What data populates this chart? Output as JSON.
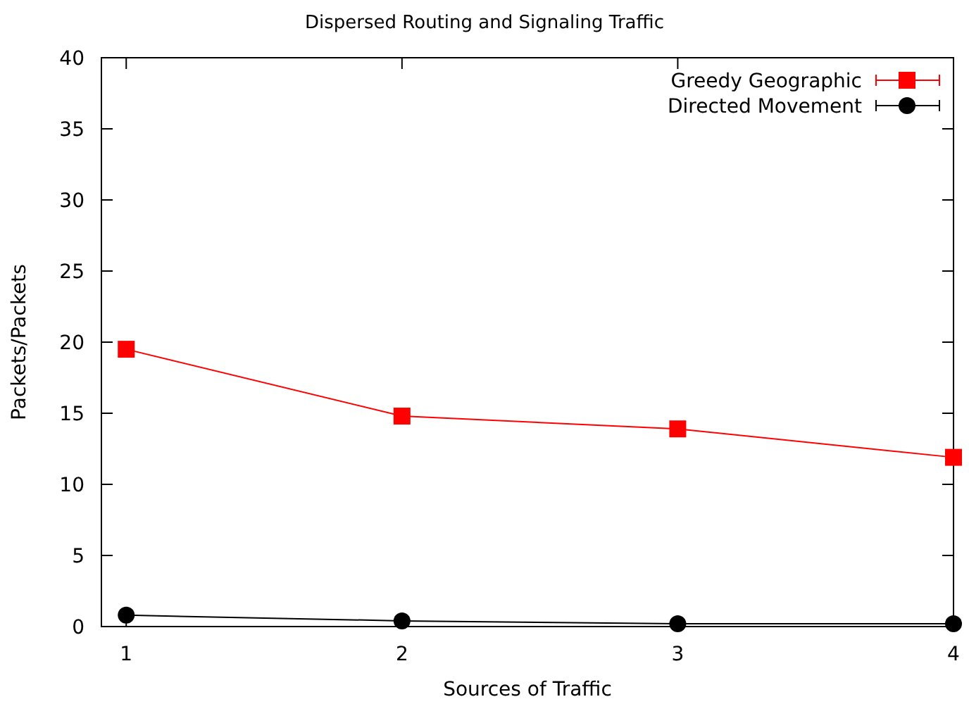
{
  "chart_data": {
    "type": "line",
    "title": "Dispersed Routing and Signaling Traffic",
    "xlabel": "Sources of Traffic",
    "ylabel": "Packets/Packets",
    "x": [
      1,
      2,
      3,
      4
    ],
    "series": [
      {
        "name": "Greedy Geographic",
        "color": "#ff0000",
        "marker": "square",
        "values": [
          19.5,
          14.8,
          13.9,
          11.9
        ]
      },
      {
        "name": "Directed Movement",
        "color": "#000000",
        "marker": "circle",
        "values": [
          0.8,
          0.4,
          0.2,
          0.2
        ]
      }
    ],
    "xlim": [
      0.91,
      4
    ],
    "ylim": [
      0,
      40
    ],
    "xticks": [
      1,
      2,
      3,
      4
    ],
    "yticks": [
      0,
      5,
      10,
      15,
      20,
      25,
      30,
      35,
      40
    ],
    "grid": false,
    "legend": "top right",
    "line_style": "solid"
  }
}
